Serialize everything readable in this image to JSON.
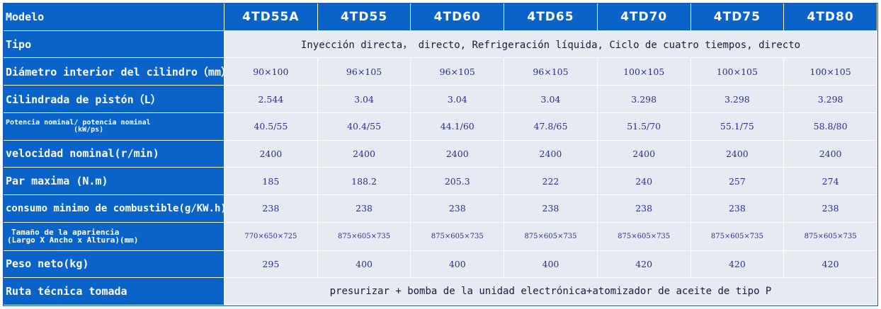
{
  "header": {
    "label": "Modelo",
    "models": [
      "4TD55A",
      "4TD55",
      "4TD60",
      "4TD65",
      "4TD70",
      "4TD75",
      "4TD80"
    ]
  },
  "rows": {
    "tipo": {
      "label": "Tipo",
      "value": "Inyección directa， directo, Refrigeración líquida, Ciclo de cuatro tiempos, directo"
    },
    "diametro": {
      "label": "Diámetro interior del cilindro（mm）",
      "values": [
        "90×100",
        "96×105",
        "96×105",
        "96×105",
        "100×105",
        "100×105",
        "100×105"
      ]
    },
    "cilindrada": {
      "label": "Cilindrada de pistón（L）",
      "values": [
        "2.544",
        "3.04",
        "3.04",
        "3.04",
        "3.298",
        "3.298",
        "3.298"
      ]
    },
    "potencia": {
      "label_line1": "Potencia nominal/ potencia nominal",
      "label_line2": "(kW/ps)",
      "values": [
        "40.5/55",
        "40.4/55",
        "44.1/60",
        "47.8/65",
        "51.5/70",
        "55.1/75",
        "58.8/80"
      ]
    },
    "velocidad": {
      "label": "velocidad nominal(r/min)",
      "values": [
        "2400",
        "2400",
        "2400",
        "2400",
        "2400",
        "2400",
        "2400"
      ]
    },
    "par": {
      "label": "Par maxima (N.m)",
      "values": [
        "185",
        "188.2",
        "205.3",
        "222",
        "240",
        "257",
        "274"
      ]
    },
    "consumo": {
      "label": "consumo minimo de combustible(g/KW.h)",
      "values": [
        "238",
        "238",
        "238",
        "238",
        "238",
        "238",
        "238"
      ]
    },
    "tamano": {
      "label_line1": "Tamaño de la apariencia",
      "label_line2": "(Largo X Ancho x Altura)(mm)",
      "values": [
        "770×650×725",
        "875×605×735",
        "875×605×735",
        "875×605×735",
        "875×605×735",
        "875×605×735",
        "875×605×735"
      ]
    },
    "peso": {
      "label": "Peso neto(kg)",
      "values": [
        "295",
        "400",
        "400",
        "400",
        "420",
        "420",
        "420"
      ]
    },
    "ruta": {
      "label": "Ruta técnica tomada",
      "value": "presurizar + bomba de la unidad electrónica+atomizador de aceite de tipo P"
    }
  }
}
